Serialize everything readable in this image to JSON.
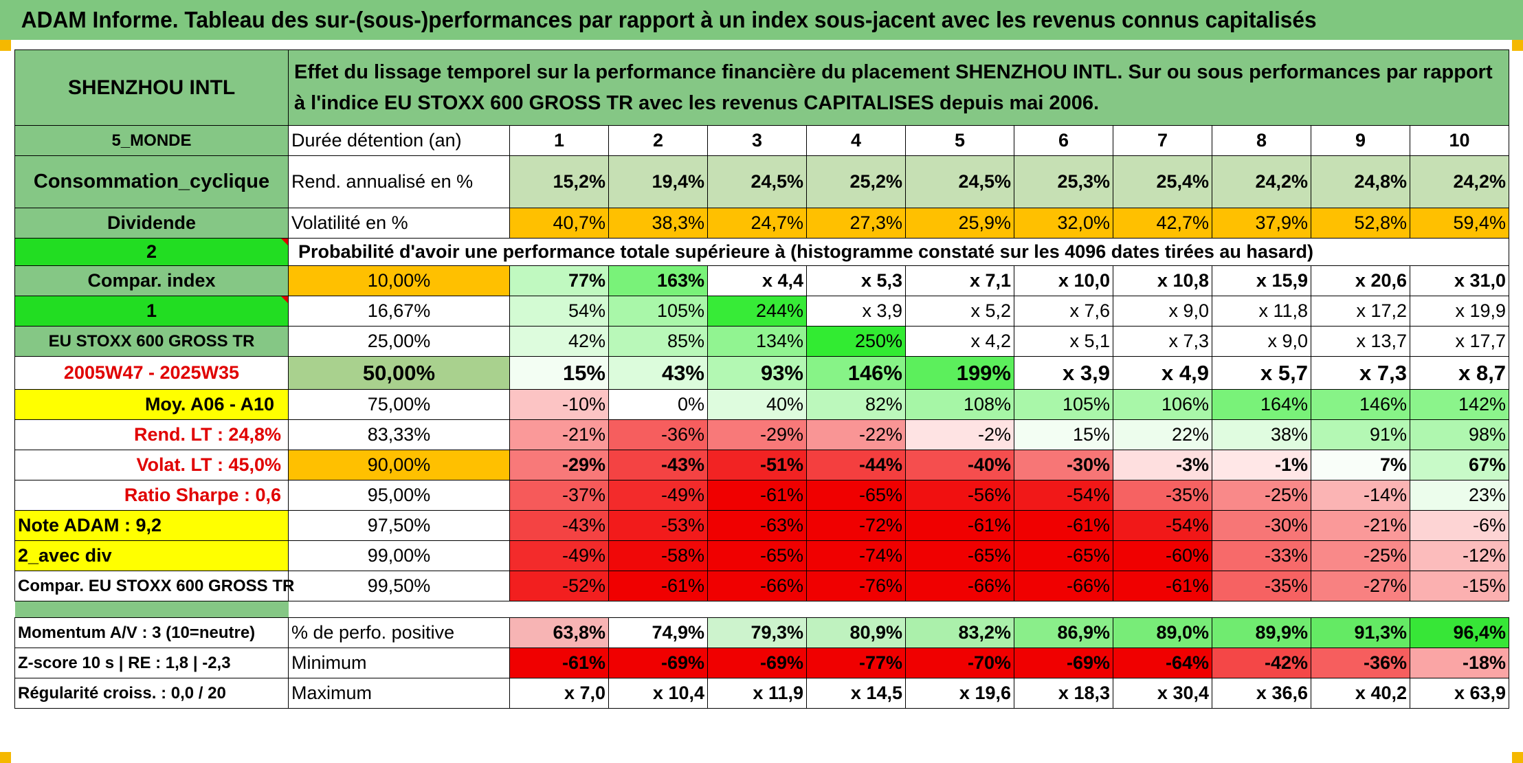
{
  "title": "ADAM Informe. Tableau des sur-(sous-)performances par rapport à un index sous-jacent avec les revenus connus capitalisés",
  "stock_name": "SHENZHOU INTL",
  "description": "Effet du lissage temporel sur la performance financière du placement SHENZHOU INTL. Sur ou sous performances par rapport à l'indice EU STOXX 600 GROSS TR avec les revenus CAPITALISES depuis mai 2006.",
  "left_labels": {
    "region": "5_MONDE",
    "sector": "Consommation_cyclique",
    "dividend": "Dividende",
    "value_2": "2",
    "compar_index": "Compar. index",
    "value_1": "1",
    "index_name": "EU STOXX 600 GROSS TR",
    "period": "2005W47 - 2025W35",
    "moy": "Moy. A06 - A10",
    "rend_lt": "Rend. LT :   24,8%",
    "volat_lt": "Volat. LT :   45,0%",
    "sharpe": "Ratio Sharpe :    0,6",
    "note": "Note ADAM : 9,2",
    "avec_div": "2_avec div",
    "compar_full": "Compar. EU STOXX 600 GROSS TR",
    "momentum": "Momentum A/V : 3 (10=neutre)",
    "zscore": "Z-score 10 s | RE : 1,8 | -2,3",
    "regularite": "Régularité croiss. : 0,0 / 20"
  },
  "header_labels": {
    "duree": "Durée détention (an)",
    "rend": "Rend. annualisé en %",
    "vol": "Volatilité en %",
    "prob": "Probabilité d'avoir une performance totale supérieure à (histogramme constaté sur les 4096 dates tirées au hasard)",
    "pos": "% de perfo. positive",
    "min": "Minimum",
    "max": "Maximum"
  },
  "years": [
    "1",
    "2",
    "3",
    "4",
    "5",
    "6",
    "7",
    "8",
    "9",
    "10"
  ],
  "rendement": [
    "15,2%",
    "19,4%",
    "24,5%",
    "25,2%",
    "24,5%",
    "25,3%",
    "25,4%",
    "24,2%",
    "24,8%",
    "24,2%"
  ],
  "volatilite": [
    "40,7%",
    "38,3%",
    "24,7%",
    "27,3%",
    "25,9%",
    "32,0%",
    "42,7%",
    "37,9%",
    "52,8%",
    "59,4%"
  ],
  "percentile_rows": [
    {
      "pct": "10,00%",
      "values": [
        "77%",
        "163%",
        "x 4,4",
        "x 5,3",
        "x 7,1",
        "x 10,0",
        "x 10,8",
        "x 15,9",
        "x 20,6",
        "x 31,0"
      ]
    },
    {
      "pct": "16,67%",
      "values": [
        "54%",
        "105%",
        "244%",
        "x 3,9",
        "x 5,2",
        "x 7,6",
        "x 9,0",
        "x 11,8",
        "x 17,2",
        "x 19,9"
      ]
    },
    {
      "pct": "25,00%",
      "values": [
        "42%",
        "85%",
        "134%",
        "250%",
        "x 4,2",
        "x 5,1",
        "x 7,3",
        "x 9,0",
        "x 13,7",
        "x 17,7"
      ]
    },
    {
      "pct": "50,00%",
      "values": [
        "15%",
        "43%",
        "93%",
        "146%",
        "199%",
        "x 3,9",
        "x 4,9",
        "x 5,7",
        "x 7,3",
        "x 8,7"
      ]
    },
    {
      "pct": "75,00%",
      "values": [
        "-10%",
        "0%",
        "40%",
        "82%",
        "108%",
        "105%",
        "106%",
        "164%",
        "146%",
        "142%"
      ]
    },
    {
      "pct": "83,33%",
      "values": [
        "-21%",
        "-36%",
        "-29%",
        "-22%",
        "-2%",
        "15%",
        "22%",
        "38%",
        "91%",
        "98%"
      ]
    },
    {
      "pct": "90,00%",
      "values": [
        "-29%",
        "-43%",
        "-51%",
        "-44%",
        "-40%",
        "-30%",
        "-3%",
        "-1%",
        "7%",
        "67%"
      ]
    },
    {
      "pct": "95,00%",
      "values": [
        "-37%",
        "-49%",
        "-61%",
        "-65%",
        "-56%",
        "-54%",
        "-35%",
        "-25%",
        "-14%",
        "23%"
      ]
    },
    {
      "pct": "97,50%",
      "values": [
        "-43%",
        "-53%",
        "-63%",
        "-72%",
        "-61%",
        "-61%",
        "-54%",
        "-30%",
        "-21%",
        "-6%"
      ]
    },
    {
      "pct": "99,00%",
      "values": [
        "-49%",
        "-58%",
        "-65%",
        "-74%",
        "-65%",
        "-65%",
        "-60%",
        "-33%",
        "-25%",
        "-12%"
      ]
    },
    {
      "pct": "99,50%",
      "values": [
        "-52%",
        "-61%",
        "-66%",
        "-76%",
        "-66%",
        "-66%",
        "-61%",
        "-35%",
        "-27%",
        "-15%"
      ]
    }
  ],
  "positive": [
    "63,8%",
    "74,9%",
    "79,3%",
    "80,9%",
    "83,2%",
    "86,9%",
    "89,0%",
    "89,9%",
    "91,3%",
    "96,4%"
  ],
  "minimum": [
    "-61%",
    "-69%",
    "-69%",
    "-77%",
    "-70%",
    "-69%",
    "-64%",
    "-42%",
    "-36%",
    "-18%"
  ],
  "maximum": [
    "x 7,0",
    "x 10,4",
    "x 11,9",
    "x 14,5",
    "x 19,6",
    "x 18,3",
    "x 30,4",
    "x 36,6",
    "x 40,2",
    "x 63,9"
  ],
  "colors": {
    "title_green": "#7fc77f",
    "label_green": "#85c785",
    "bright_green": "#22dd22",
    "orange": "#ffc000",
    "yellow": "#ffff00",
    "light_green": "#c6e0b4",
    "period_red": "#e00000"
  }
}
